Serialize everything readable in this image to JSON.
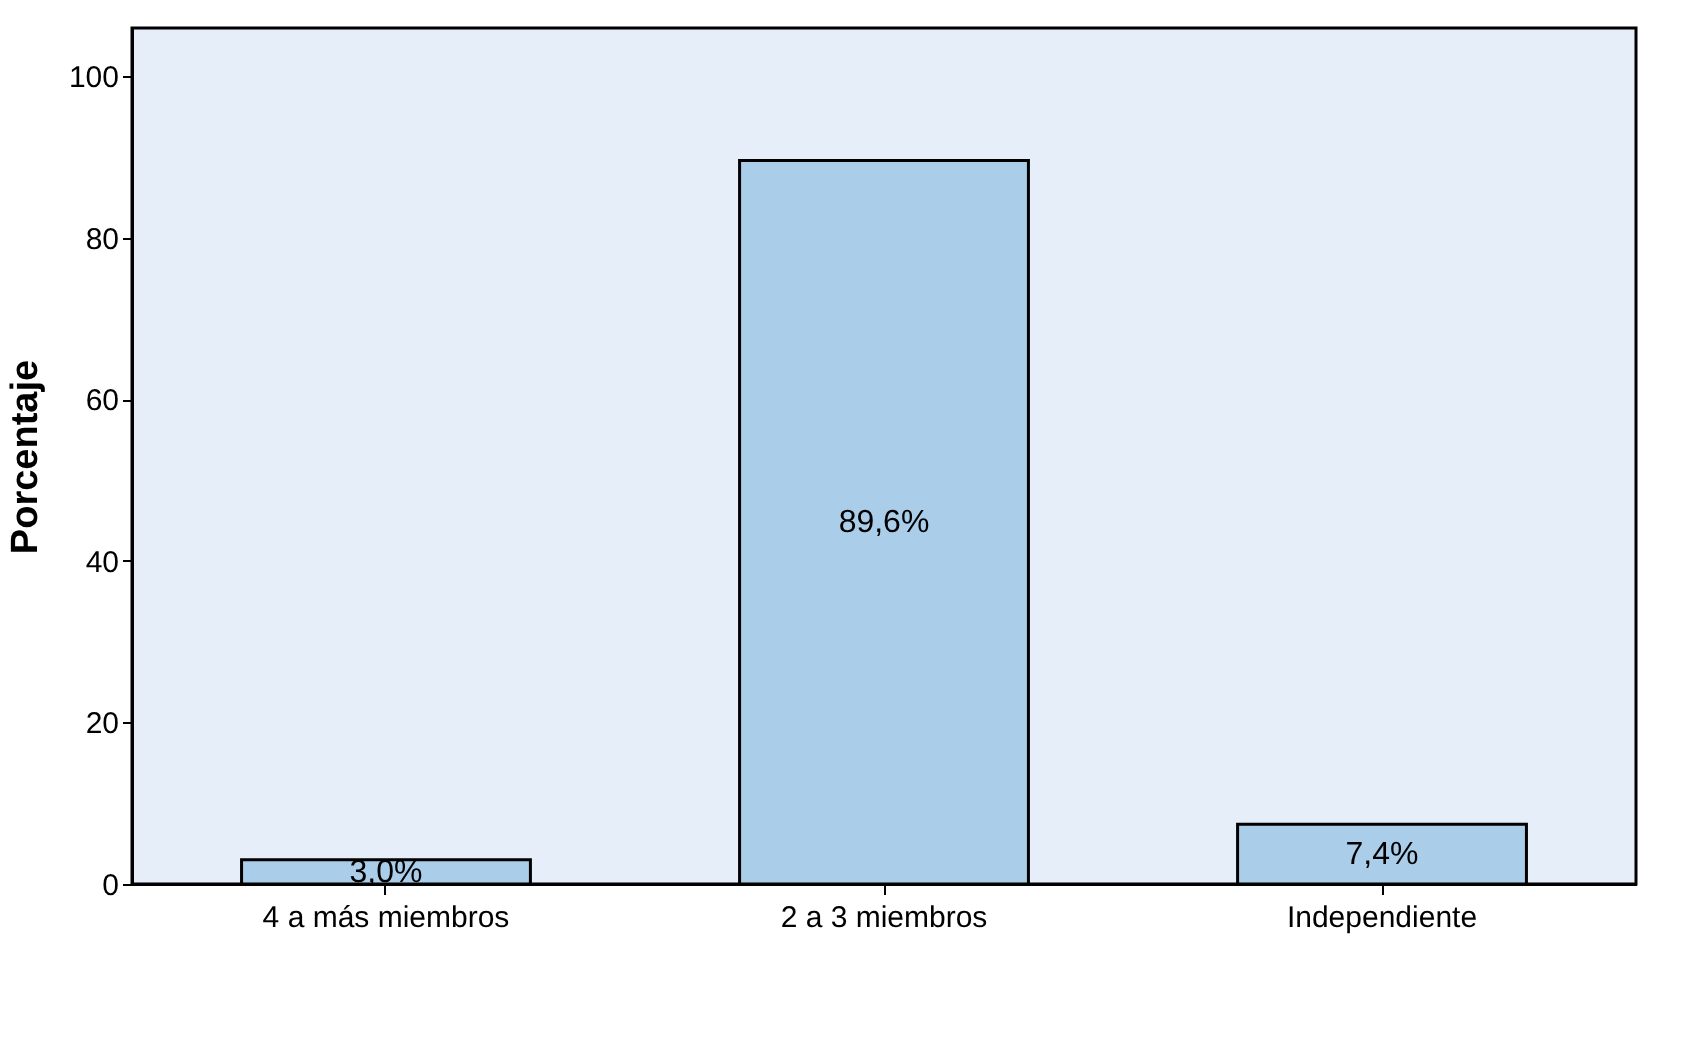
{
  "chart_data": {
    "type": "bar",
    "ylabel": "Porcentaje",
    "categories": [
      "4 a más miembros",
      "2 a 3 miembros",
      "Independiente"
    ],
    "values": [
      3.0,
      89.6,
      7.4
    ],
    "value_labels": [
      "3,0%",
      "89,6%",
      "7,4%"
    ],
    "color": "#aacde9",
    "ylim": [
      0,
      106
    ],
    "yticks": [
      0,
      20,
      40,
      60,
      80,
      100
    ],
    "grid": false
  }
}
